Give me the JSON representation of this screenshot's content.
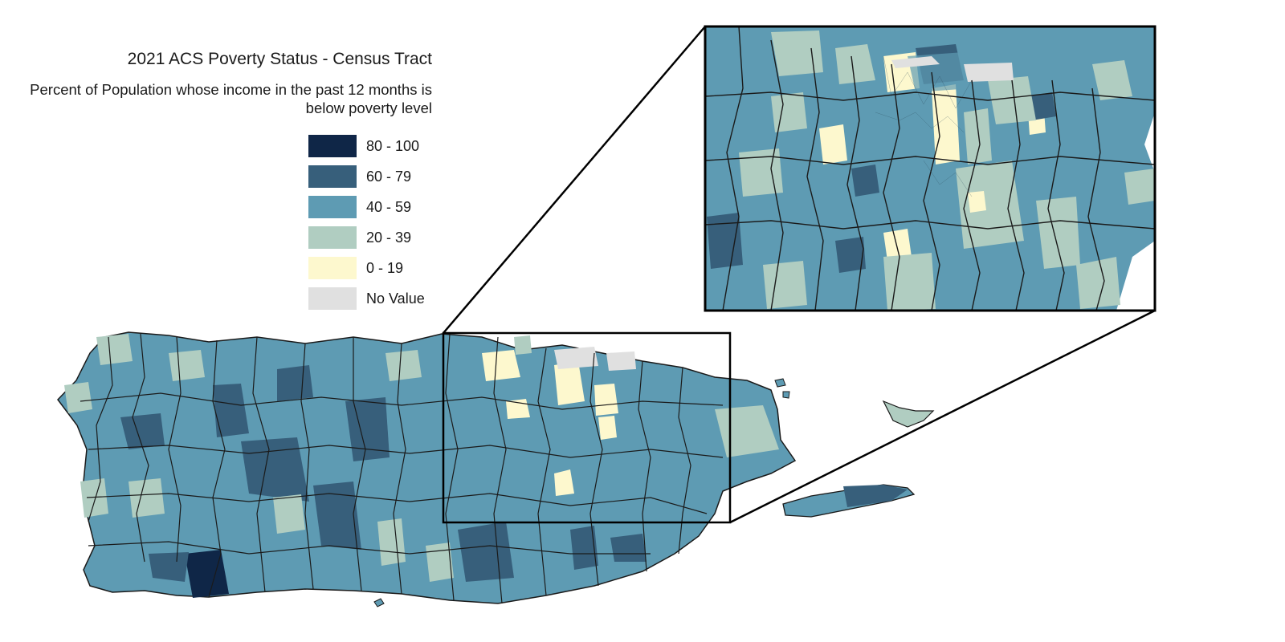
{
  "map": {
    "title": "2021 ACS Poverty Status - Census Tract",
    "subtitle": "Percent of Population whose income in the past 12 months is below poverty level",
    "legend": [
      {
        "label": "80 - 100",
        "color": "#0f2647"
      },
      {
        "label": "60 - 79",
        "color": "#375f7b"
      },
      {
        "label": "40 - 59",
        "color": "#5e9bb3"
      },
      {
        "label": "20 - 39",
        "color": "#b0cdc1"
      },
      {
        "label": "0 - 19",
        "color": "#fdf8ce"
      },
      {
        "label": "No Value",
        "color": "#e0e0e0"
      }
    ],
    "inset": "zoom-in of the San Juan metropolitan area"
  }
}
